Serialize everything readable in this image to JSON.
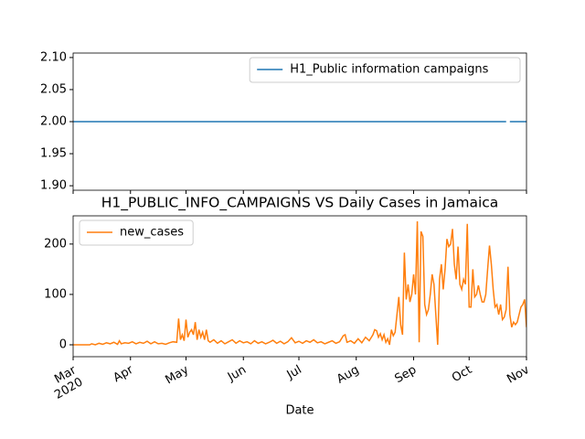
{
  "chart_data": [
    {
      "type": "line",
      "x": [
        0,
        234,
        235,
        236,
        245
      ],
      "series": [
        {
          "name": "H1_Public information campaigns",
          "color": "#1f77b4",
          "values": [
            2,
            2,
            null,
            2,
            2
          ]
        }
      ],
      "xlim": [
        0,
        245
      ],
      "ylim": [
        1.893,
        2.107
      ],
      "yticks": [
        {
          "value": 1.9,
          "label": "1.90"
        },
        1.95,
        {
          "value": 2.0,
          "label": "2.00"
        },
        2.05,
        {
          "value": 2.1,
          "label": "2.10"
        }
      ],
      "legend": "upper right"
    },
    {
      "type": "line",
      "title": "H1_PUBLIC_INFO_CAMPAIGNS VS Daily Cases in Jamaica",
      "x_label": "Date",
      "x": [
        0,
        9,
        10,
        12,
        14,
        16,
        18,
        20,
        22,
        24,
        25,
        26,
        28,
        30,
        32,
        34,
        36,
        38,
        40,
        42,
        44,
        46,
        48,
        50,
        52,
        54,
        56,
        57,
        58,
        59,
        60,
        61,
        62,
        63,
        64,
        65,
        66,
        67,
        68,
        69,
        70,
        71,
        72,
        73,
        74,
        76,
        78,
        80,
        82,
        84,
        86,
        88,
        90,
        92,
        94,
        96,
        98,
        100,
        102,
        104,
        106,
        108,
        110,
        112,
        114,
        116,
        118,
        120,
        122,
        124,
        126,
        128,
        130,
        132,
        134,
        136,
        138,
        140,
        142,
        144,
        146,
        147,
        148,
        150,
        152,
        154,
        156,
        158,
        160,
        162,
        163,
        164,
        165,
        166,
        167,
        168,
        169,
        170,
        171,
        172,
        173,
        174,
        175,
        176,
        177,
        178,
        179,
        180,
        181,
        182,
        183,
        184,
        185,
        186,
        187,
        188,
        189,
        190,
        191,
        192,
        193,
        194,
        195,
        196,
        197,
        198,
        199,
        200,
        201,
        202,
        203,
        204,
        205,
        206,
        207,
        208,
        209,
        210,
        211,
        212,
        213,
        214,
        215,
        216,
        217,
        218,
        219,
        220,
        221,
        222,
        223,
        224,
        225,
        226,
        227,
        228,
        229,
        230,
        231,
        232,
        233,
        234,
        235,
        236,
        237,
        238,
        239,
        240,
        241,
        242,
        243,
        244,
        245
      ],
      "series": [
        {
          "name": "new_cases",
          "color": "#ff7f0e",
          "values": [
            0,
            0,
            2,
            0,
            3,
            1,
            4,
            2,
            5,
            1,
            8,
            2,
            4,
            3,
            6,
            2,
            5,
            3,
            7,
            2,
            6,
            2,
            3,
            1,
            4,
            6,
            5,
            52,
            10,
            20,
            8,
            50,
            15,
            25,
            30,
            20,
            45,
            10,
            30,
            15,
            25,
            10,
            30,
            8,
            5,
            10,
            3,
            8,
            2,
            6,
            10,
            3,
            8,
            4,
            6,
            2,
            8,
            3,
            6,
            2,
            5,
            9,
            3,
            7,
            2,
            6,
            14,
            4,
            7,
            3,
            8,
            5,
            10,
            4,
            6,
            2,
            5,
            8,
            3,
            6,
            18,
            20,
            5,
            8,
            3,
            12,
            4,
            15,
            8,
            20,
            30,
            28,
            15,
            22,
            10,
            20,
            5,
            12,
            0,
            30,
            18,
            25,
            60,
            95,
            40,
            20,
            183,
            90,
            120,
            85,
            100,
            140,
            100,
            245,
            5,
            225,
            215,
            80,
            60,
            70,
            100,
            140,
            120,
            60,
            0,
            130,
            160,
            110,
            150,
            210,
            195,
            200,
            230,
            160,
            130,
            195,
            120,
            110,
            130,
            120,
            240,
            75,
            75,
            150,
            95,
            100,
            118,
            100,
            85,
            85,
            100,
            150,
            197,
            160,
            110,
            75,
            80,
            60,
            80,
            50,
            55,
            70,
            155,
            60,
            35,
            45,
            40,
            45,
            60,
            75,
            80,
            90,
            35
          ]
        }
      ],
      "xlim": [
        0,
        245
      ],
      "xticks": [
        {
          "value": 0,
          "label": "Mar\n2020"
        },
        {
          "value": 31,
          "label": "Apr"
        },
        {
          "value": 61,
          "label": "May"
        },
        {
          "value": 92,
          "label": "Jun"
        },
        {
          "value": 122,
          "label": "Jul"
        },
        {
          "value": 153,
          "label": "Aug"
        },
        {
          "value": 184,
          "label": "Sep"
        },
        {
          "value": 214,
          "label": "Oct"
        },
        {
          "value": 245,
          "label": "Nov"
        }
      ],
      "ylim": [
        -23.6,
        256
      ],
      "yticks": [
        0,
        100,
        200
      ],
      "legend": "upper left"
    }
  ]
}
